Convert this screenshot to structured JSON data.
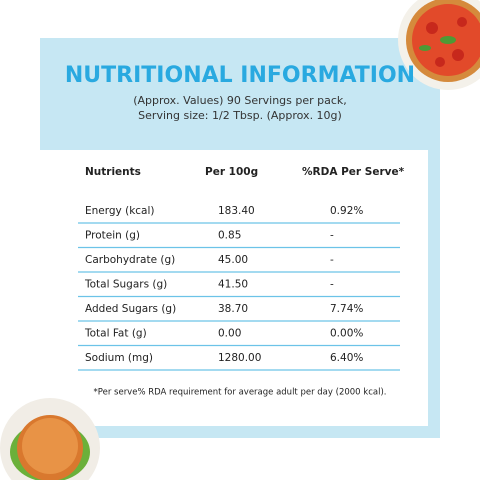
{
  "header": {
    "title": "NUTRITIONAL INFORMATION",
    "subtitle_lines": [
      "(Approx. Values) 90 Servings per pack,",
      "Serving size: 1/2 Tbsp. (Approx. 10g)"
    ]
  },
  "table": {
    "columns": [
      "Nutrients",
      "Per 100g",
      "%RDA Per Serve*"
    ],
    "rows": [
      [
        "Energy (kcal)",
        "183.40",
        "0.92%"
      ],
      [
        "Protein (g)",
        "0.85",
        "-"
      ],
      [
        "Carbohydrate (g)",
        "45.00",
        "-"
      ],
      [
        "Total Sugars (g)",
        "41.50",
        "-"
      ],
      [
        "Added Sugars (g)",
        "38.70",
        "7.74%"
      ],
      [
        "Total Fat (g)",
        "0.00",
        "0.00%"
      ],
      [
        "Sodium (mg)",
        "1280.00",
        "6.40%"
      ]
    ]
  },
  "footnote": "*Per serve% RDA requirement for average adult per day (2000 kcal)."
}
